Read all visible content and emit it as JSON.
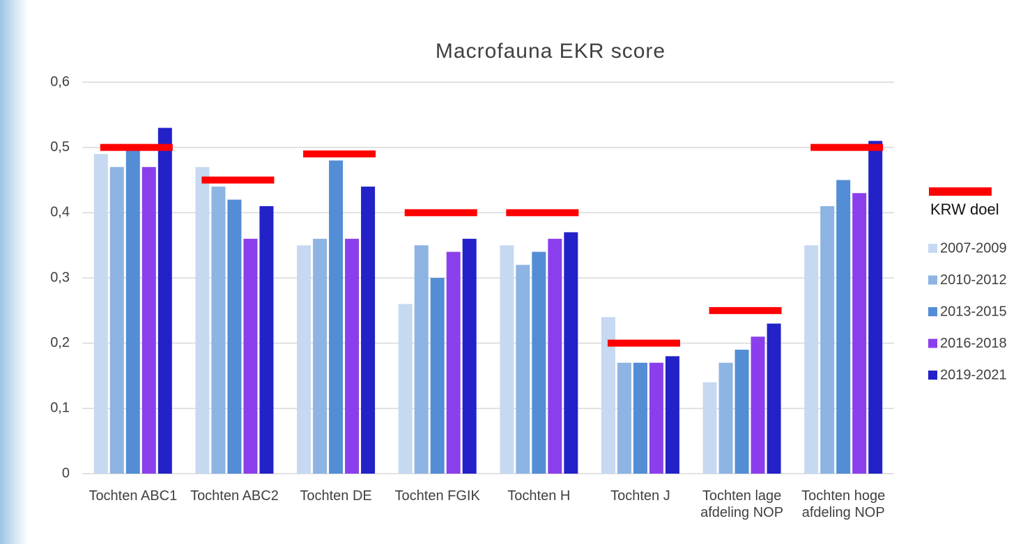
{
  "chart_data": {
    "type": "bar",
    "title": "Macrofauna EKR score",
    "categories": [
      "Tochten ABC1",
      "Tochten ABC2",
      "Tochten DE",
      "Tochten FGIK",
      "Tochten H",
      "Tochten J",
      "Tochten lage afdeling NOP",
      "Tochten hoge afdeling NOP"
    ],
    "series": [
      {
        "name": "2007-2009",
        "color": "#c6d9f1",
        "values": [
          0.49,
          0.47,
          0.35,
          0.26,
          0.35,
          0.24,
          0.14,
          0.35
        ]
      },
      {
        "name": "2010-2012",
        "color": "#8db4e2",
        "values": [
          0.47,
          0.44,
          0.36,
          0.35,
          0.32,
          0.17,
          0.17,
          0.41
        ]
      },
      {
        "name": "2013-2015",
        "color": "#538dd5",
        "values": [
          0.5,
          0.42,
          0.48,
          0.3,
          0.34,
          0.17,
          0.19,
          0.45
        ]
      },
      {
        "name": "2016-2018",
        "color": "#8b3fec",
        "values": [
          0.47,
          0.36,
          0.36,
          0.34,
          0.36,
          0.17,
          0.21,
          0.43
        ]
      },
      {
        "name": "2019-2021",
        "color": "#2222c8",
        "values": [
          0.53,
          0.41,
          0.44,
          0.36,
          0.37,
          0.18,
          0.23,
          0.51
        ]
      }
    ],
    "target": {
      "name": "KRW doel",
      "color": "#ff0000",
      "values": [
        0.5,
        0.45,
        0.49,
        0.4,
        0.4,
        0.2,
        0.25,
        0.5
      ]
    },
    "ylim": [
      0,
      0.6
    ],
    "yticks": [
      0,
      {
        "value": 0.1,
        "label": "0,1"
      },
      {
        "value": 0.2,
        "label": "0,2"
      },
      {
        "value": 0.3,
        "label": "0,3"
      },
      {
        "value": 0.4,
        "label": "0,4"
      },
      {
        "value": 0.5,
        "label": "0,5"
      },
      {
        "value": 0.6,
        "label": "0,6"
      }
    ],
    "grid": true,
    "legend": "right"
  }
}
